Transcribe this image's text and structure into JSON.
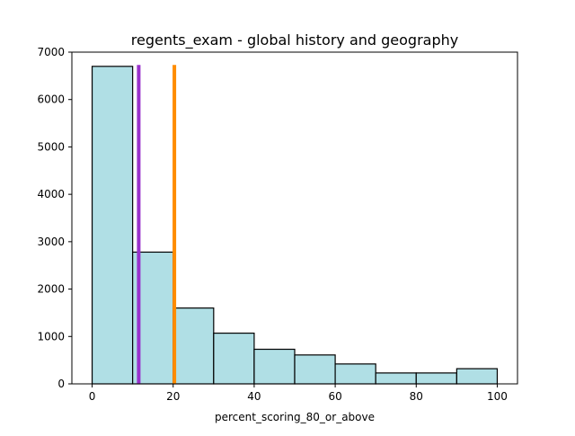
{
  "chart_data": {
    "type": "bar",
    "title": "regents_exam - global history and geography",
    "xlabel": "percent_scoring_80_or_above",
    "ylabel": "",
    "xlim": [
      -5,
      105
    ],
    "ylim": [
      0,
      7000
    ],
    "xticks": [
      0,
      20,
      40,
      60,
      80,
      100
    ],
    "yticks": [
      0,
      1000,
      2000,
      3000,
      4000,
      5000,
      6000,
      7000
    ],
    "grid": false,
    "bins": [
      {
        "x0": 0,
        "x1": 10,
        "count": 6700
      },
      {
        "x0": 10,
        "x1": 20,
        "count": 2780
      },
      {
        "x0": 20,
        "x1": 30,
        "count": 1600
      },
      {
        "x0": 30,
        "x1": 40,
        "count": 1070
      },
      {
        "x0": 40,
        "x1": 50,
        "count": 730
      },
      {
        "x0": 50,
        "x1": 60,
        "count": 610
      },
      {
        "x0": 60,
        "x1": 70,
        "count": 420
      },
      {
        "x0": 70,
        "x1": 80,
        "count": 230
      },
      {
        "x0": 80,
        "x1": 90,
        "count": 230
      },
      {
        "x0": 90,
        "x1": 100,
        "count": 320
      }
    ],
    "vlines": [
      {
        "x": 11.5,
        "y_top": 6730,
        "color": "#9932cc"
      },
      {
        "x": 20.3,
        "y_top": 6730,
        "color": "#ff8c00"
      }
    ],
    "bar_color": "#b0dfe5",
    "edge_color": "#000000"
  }
}
